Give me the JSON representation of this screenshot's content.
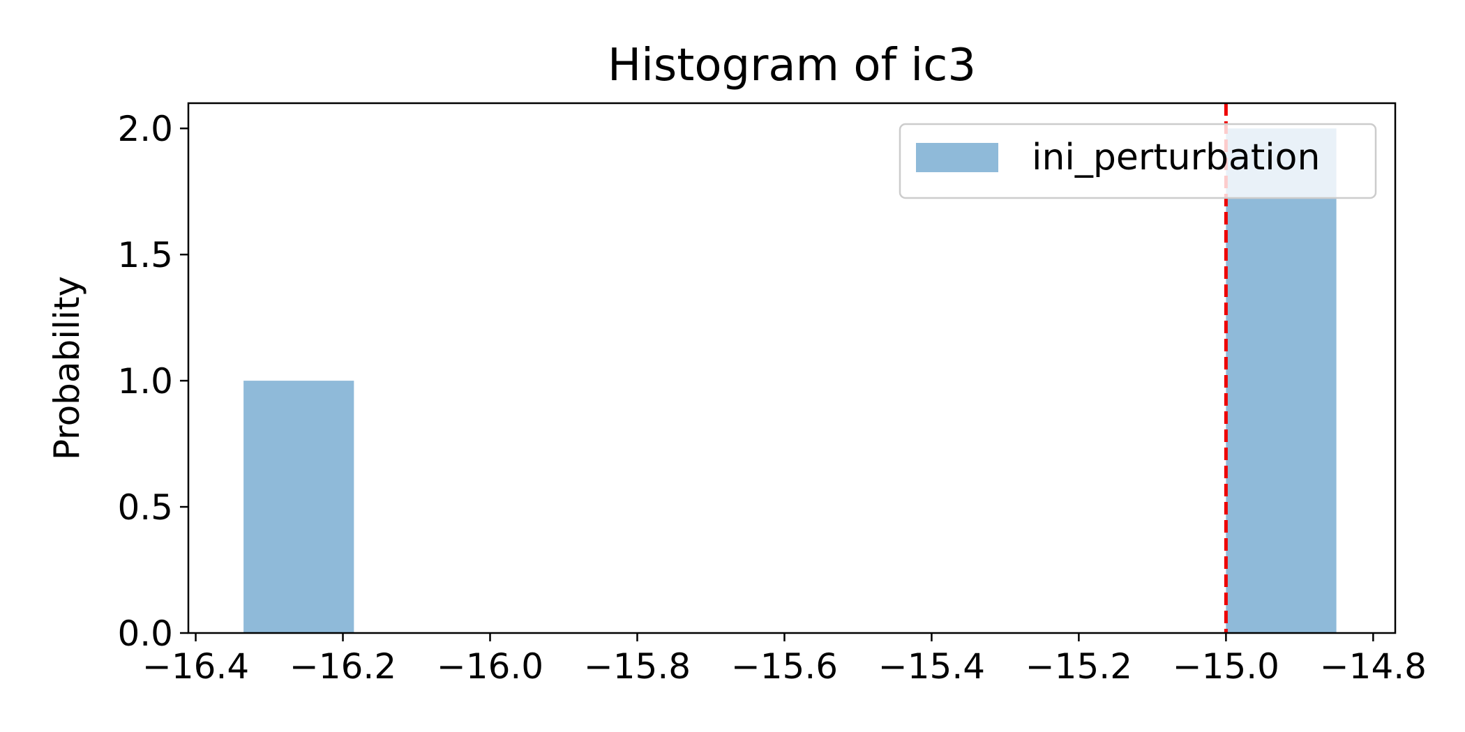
{
  "chart_data": {
    "type": "bar",
    "title": "Histogram of ic3",
    "xlabel": "",
    "ylabel": "Probability",
    "xlim": [
      -16.41,
      -14.77
    ],
    "ylim": [
      0,
      2.1
    ],
    "xticks": [
      -16.4,
      -16.2,
      -16.0,
      -15.8,
      -15.6,
      -15.4,
      -15.2,
      -15.0,
      -14.8
    ],
    "xtick_labels": [
      "−16.4",
      "−16.2",
      "−16.0",
      "−15.8",
      "−15.6",
      "−15.4",
      "−15.2",
      "−15.0",
      "−14.8"
    ],
    "yticks": [
      0.0,
      0.5,
      1.0,
      1.5,
      2.0
    ],
    "ytick_labels": [
      "0.0",
      "0.5",
      "1.0",
      "1.5",
      "2.0"
    ],
    "grid": false,
    "legend_placement": "top-right",
    "series": [
      {
        "name": "ini_perturbation",
        "color": "#8fbad9",
        "bins": [
          {
            "x0": -16.335,
            "x1": -16.185,
            "value": 1.0
          },
          {
            "x0": -15.0,
            "x1": -14.85,
            "value": 2.0
          }
        ]
      }
    ],
    "reference_line": {
      "x": -15.0,
      "color": "#ee0000",
      "style": "dashed"
    }
  }
}
